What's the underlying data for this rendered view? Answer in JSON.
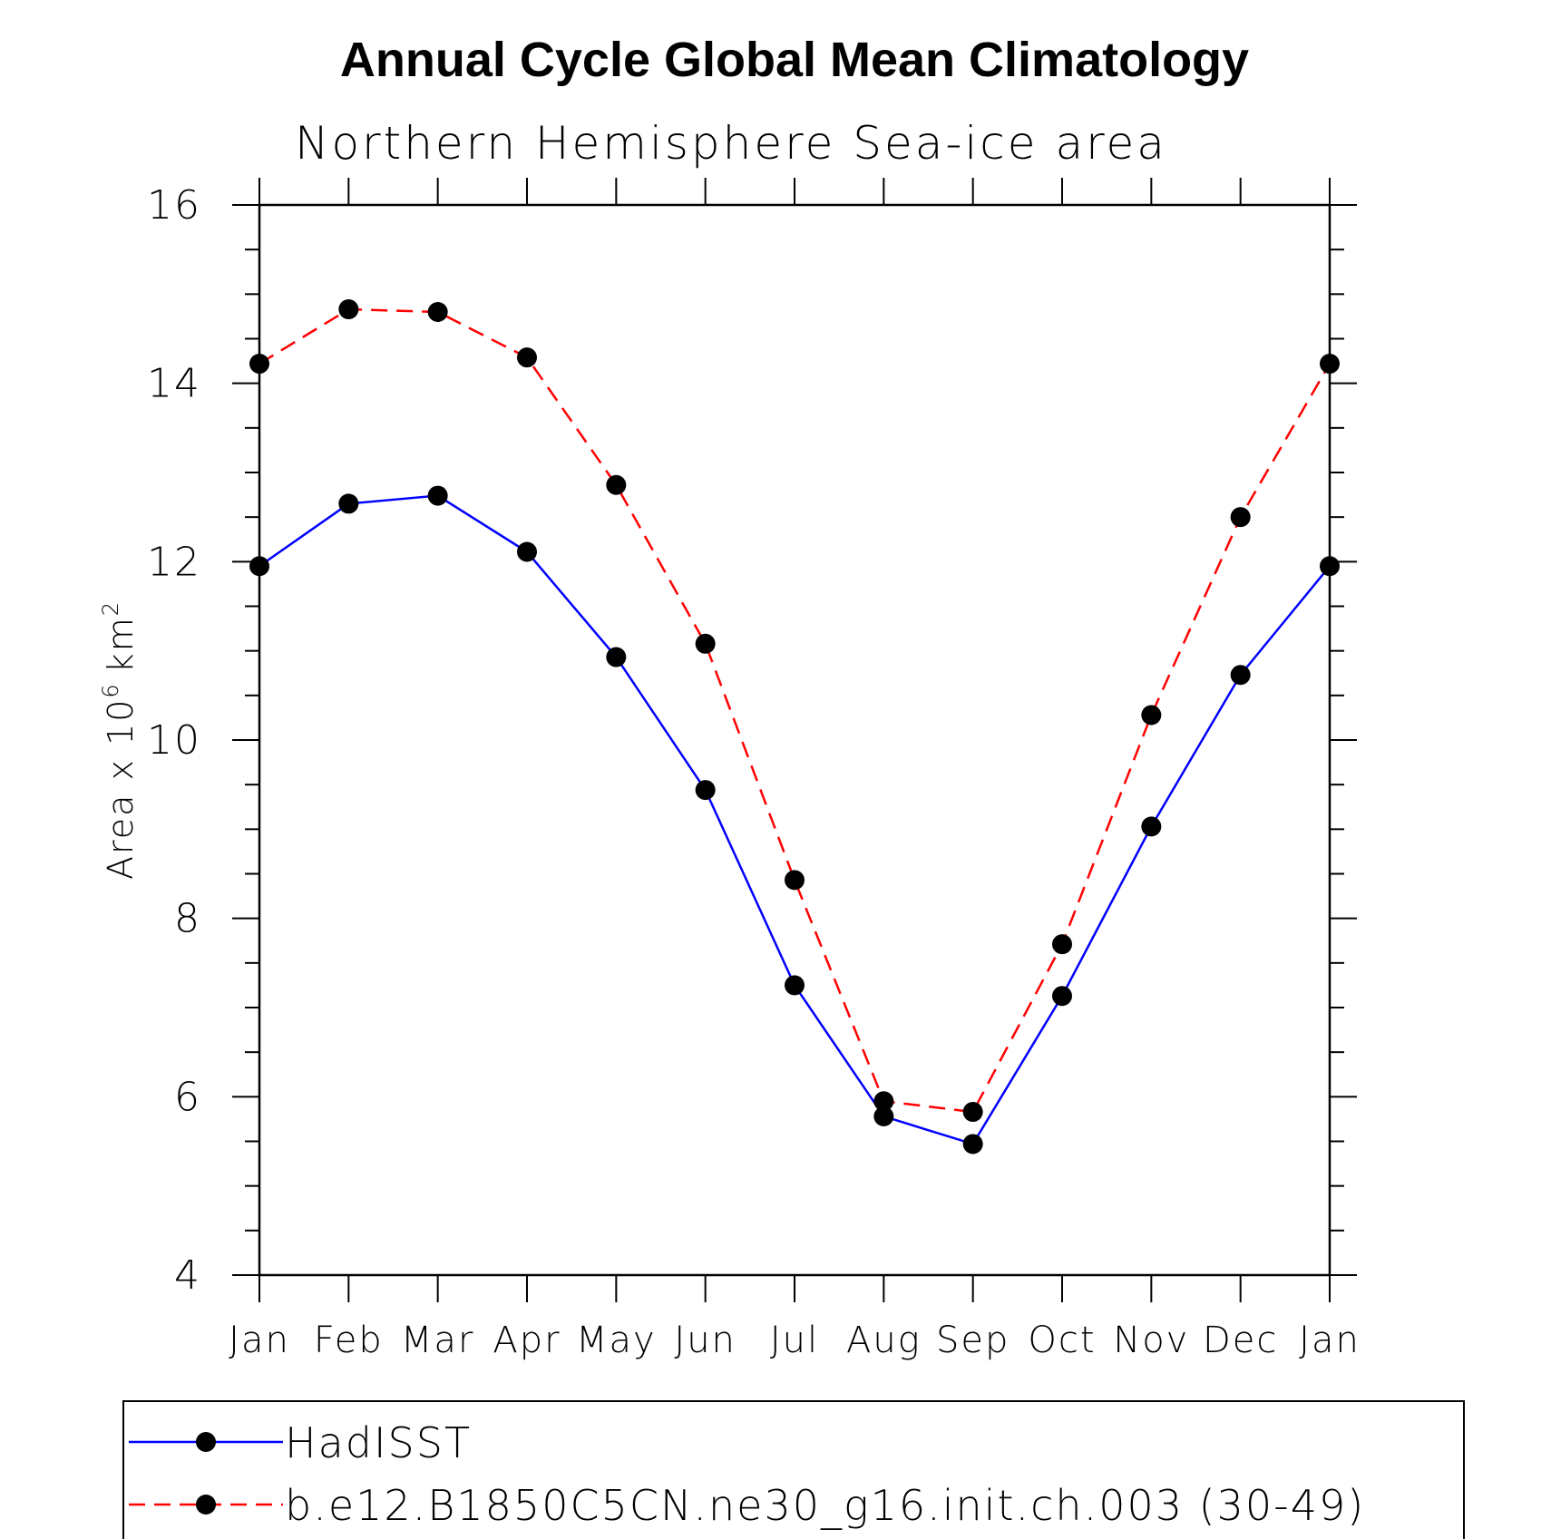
{
  "chart_data": {
    "type": "line",
    "title": "Annual Cycle Global Mean Climatology",
    "subtitle": "Northern Hemisphere Sea-ice area",
    "xlabel": "",
    "ylabel": "Area x 10",
    "ylabel_exponent": "6",
    "ylabel_unit": "km",
    "ylabel_unit_exponent": "2",
    "categories": [
      "Jan",
      "Feb",
      "Mar",
      "Apr",
      "May",
      "Jun",
      "Jul",
      "Aug",
      "Sep",
      "Oct",
      "Nov",
      "Dec",
      "Jan"
    ],
    "ylim": [
      4,
      16
    ],
    "yticks": [
      "4",
      "6",
      "8",
      "10",
      "12",
      "14",
      "16"
    ],
    "grid": false,
    "legend_position": "bottom",
    "series": [
      {
        "name": "HadISST",
        "color": "#0000ff",
        "line_style": "solid",
        "marker": "filled-circle",
        "values": [
          11.95,
          12.65,
          12.74,
          12.11,
          10.93,
          9.44,
          7.25,
          5.78,
          5.47,
          7.13,
          9.03,
          10.73,
          11.95
        ]
      },
      {
        "name": "b.e12.B1850C5CN.ne30_g16.init.ch.003 (30-49)",
        "color": "#ff0000",
        "line_style": "dashed",
        "marker": "filled-circle",
        "values": [
          14.22,
          14.83,
          14.8,
          14.29,
          12.86,
          11.08,
          8.43,
          5.95,
          5.83,
          7.71,
          10.28,
          12.5,
          14.22
        ]
      }
    ]
  }
}
